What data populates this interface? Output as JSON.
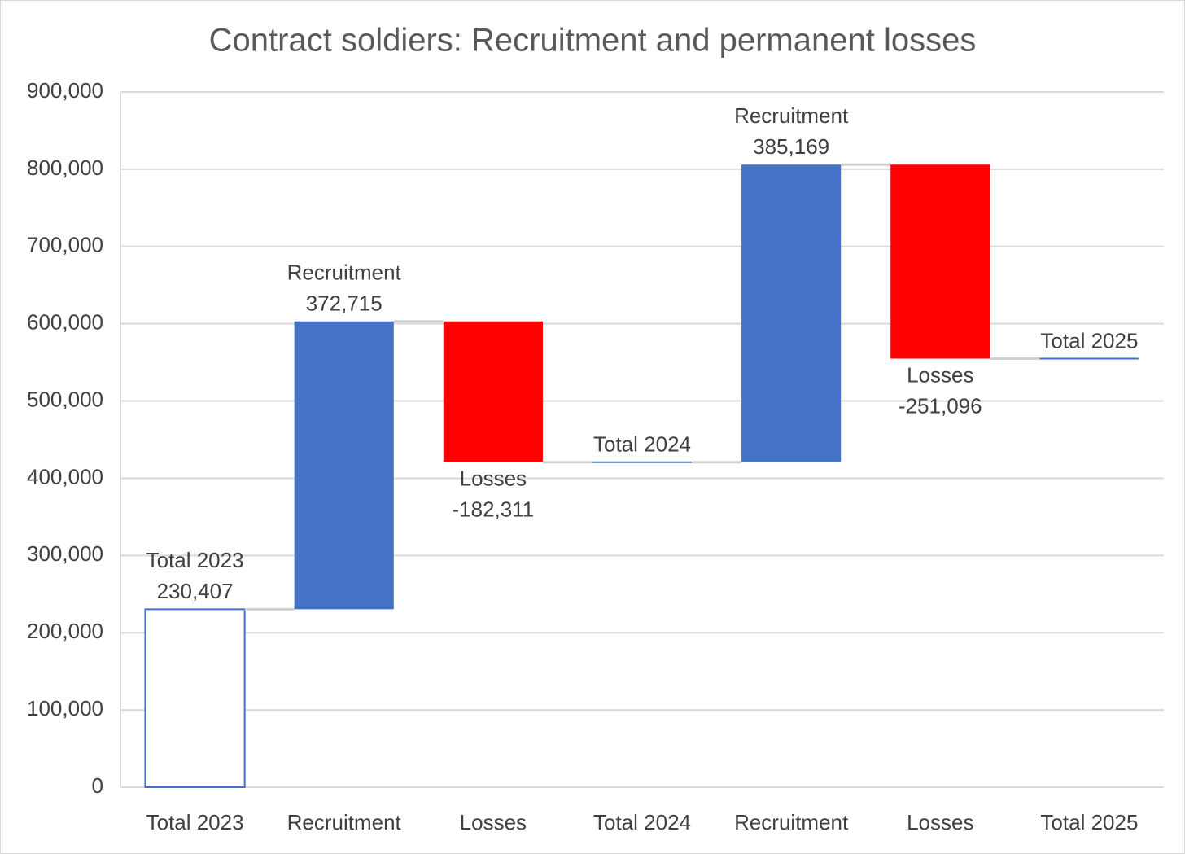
{
  "chart_data": {
    "type": "waterfall",
    "title": "Contract soldiers: Recruitment and permanent losses",
    "categories": [
      "Total 2023",
      "Recruitment",
      "Losses",
      "Total 2024",
      "Recruitment",
      "Losses",
      "Total 2025"
    ],
    "values": [
      230407,
      372715,
      -182311,
      420811,
      385169,
      -251096,
      554884
    ],
    "value_labels": [
      "230,407",
      "372,715",
      "-182,311",
      null,
      "385,169",
      "-251,096",
      null
    ],
    "increase_color": "#4472c4",
    "decrease_color": "#ff0000",
    "total_color": "#4472c4",
    "ylim": [
      0,
      900000
    ],
    "yticks": [
      0,
      {
        "value": 100000,
        "label": "100,000"
      },
      {
        "value": 200000,
        "label": "200,000"
      },
      {
        "value": 300000,
        "label": "300,000"
      },
      {
        "value": 400000,
        "label": "400,000"
      },
      {
        "value": 500000,
        "label": "500,000"
      },
      {
        "value": 600000,
        "label": "600,000"
      },
      {
        "value": 700000,
        "label": "700,000"
      },
      {
        "value": 800000,
        "label": "800,000"
      },
      {
        "value": 900000,
        "label": "900,000"
      }
    ],
    "grid": true
  }
}
